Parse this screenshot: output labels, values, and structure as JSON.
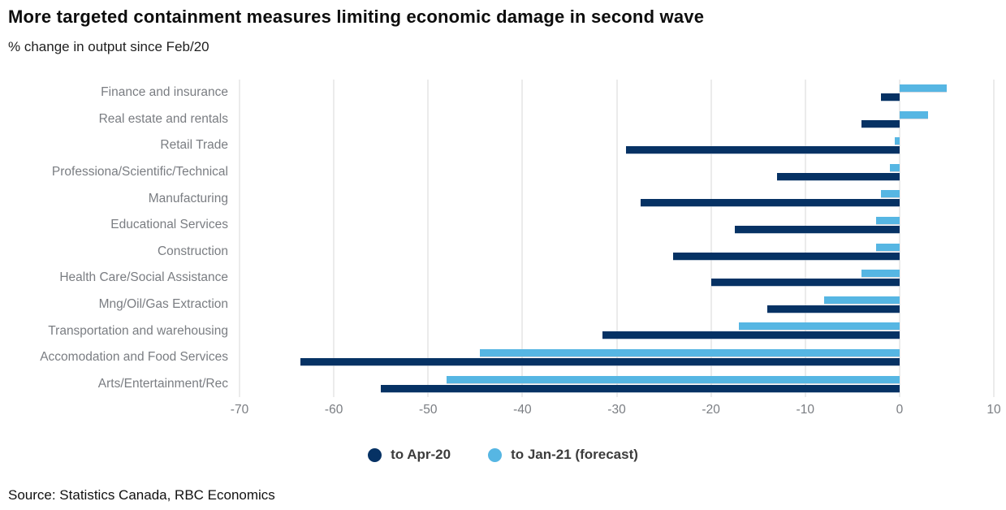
{
  "header": {
    "title": "More targeted containment measures limiting economic damage in second wave",
    "subtitle": "% change in output since Feb/20"
  },
  "source": "Source: Statistics Canada, RBC Economics",
  "colors": {
    "apr_navy": "#063264",
    "jan_lightblue": "#56b6e3",
    "gridline": "#ebebeb",
    "axis_text": "#7a7d82"
  },
  "legend": {
    "items": [
      {
        "label": "to Apr-20",
        "color": "#063264"
      },
      {
        "label": "to Jan-21 (forecast)",
        "color": "#56b6e3"
      }
    ]
  },
  "chart_data": {
    "type": "bar",
    "orientation": "horizontal",
    "title": "More targeted containment measures limiting economic damage in second wave",
    "subtitle": "% change in output since Feb/20",
    "xlabel": "% change in output since Feb/20",
    "ylabel": "",
    "xlim": [
      -70,
      10
    ],
    "xticks": [
      -70,
      -60,
      -50,
      -40,
      -30,
      -20,
      -10,
      0,
      10
    ],
    "grid": true,
    "legend_position": "bottom",
    "categories": [
      "Finance and insurance",
      "Real estate and rentals",
      "Retail Trade",
      "Professiona/Scientific/Technical",
      "Manufacturing",
      "Educational Services",
      "Construction",
      "Health Care/Social Assistance",
      "Mng/Oil/Gas Extraction",
      "Transportation and warehousing",
      "Accomodation and Food Services",
      "Arts/Entertainment/Rec"
    ],
    "series": [
      {
        "name": "to Apr-20",
        "color": "#063264",
        "values": [
          -2,
          -4,
          -29,
          -13,
          -27.5,
          -17.5,
          -24,
          -20,
          -14,
          -31.5,
          -63.5,
          -55
        ]
      },
      {
        "name": "to Jan-21 (forecast)",
        "color": "#56b6e3",
        "values": [
          5,
          3,
          -0.5,
          -1,
          -2,
          -2.5,
          -2.5,
          -4,
          -8,
          -17,
          -44.5,
          -48
        ]
      }
    ]
  }
}
